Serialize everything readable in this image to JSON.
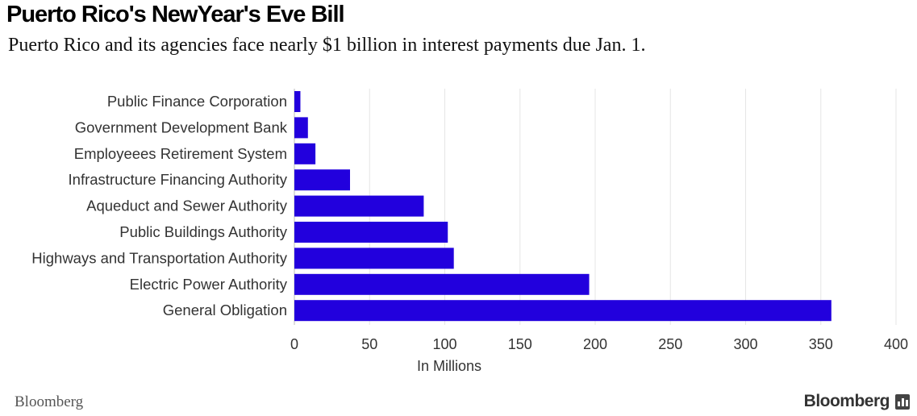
{
  "header": {
    "title": "Puerto Rico's NewYear's Eve Bill",
    "subtitle": "Puerto Rico and its agencies face nearly $1 billion in interest payments due Jan. 1."
  },
  "footer": {
    "source": "Bloomberg",
    "brand": "Bloomberg"
  },
  "colors": {
    "bar": "#2200dd",
    "grid": "#e6e6e6",
    "text": "#333333"
  },
  "chart_data": {
    "type": "bar",
    "orientation": "horizontal",
    "categories": [
      "Public Finance Corporation",
      "Government Development Bank",
      "Employeees Retirement System",
      "Infrastructure Financing Authority",
      "Aqueduct and Sewer Authority",
      "Public Buildings Authority",
      "Highways and Transportation Authority",
      "Electric Power Authority",
      "General Obligation"
    ],
    "values": [
      4,
      9,
      14,
      37,
      86,
      102,
      106,
      196,
      357
    ],
    "xlabel": "In Millions",
    "ylabel": "",
    "xlim": [
      0,
      400
    ],
    "xticks": [
      0,
      50,
      100,
      150,
      200,
      250,
      300,
      350,
      400
    ],
    "grid": true
  }
}
